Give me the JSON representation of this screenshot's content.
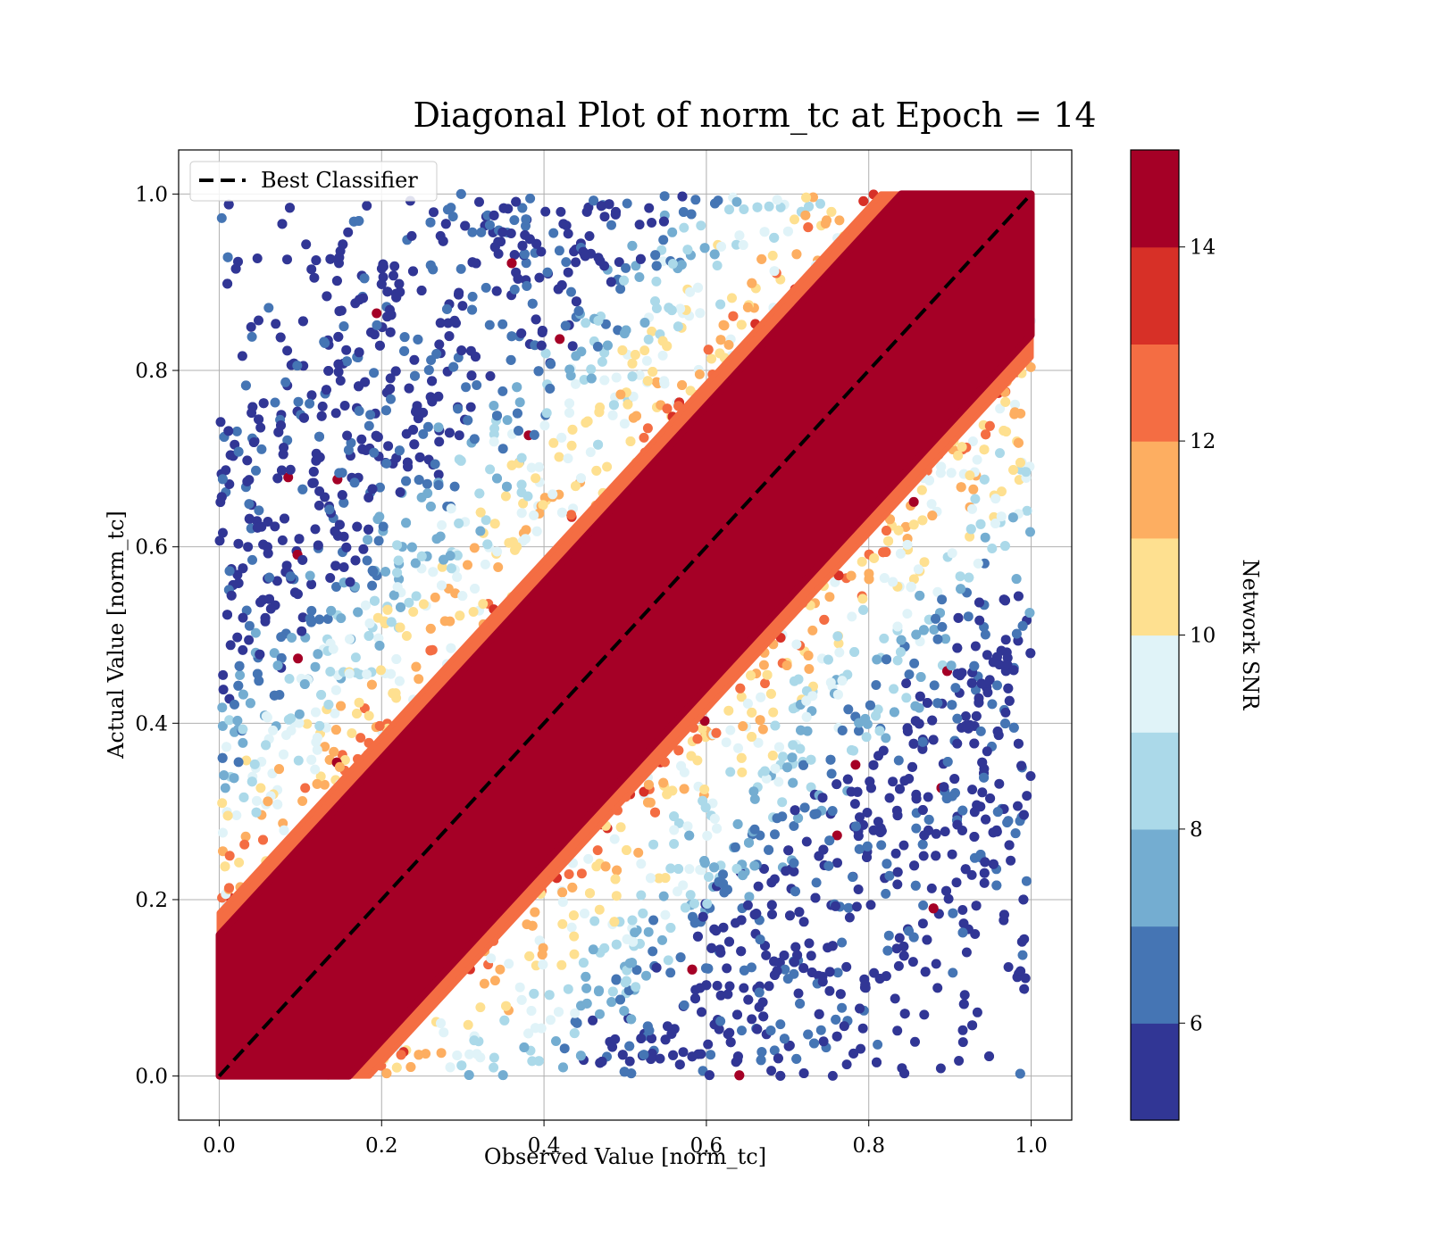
{
  "chart_data": {
    "type": "scatter",
    "title": "Diagonal Plot of norm_tc at Epoch = 14",
    "xlabel": "Observed Value [norm_tc]",
    "ylabel": "Actual Value [norm_tc]",
    "xlim": [
      -0.05,
      1.05
    ],
    "ylim": [
      -0.05,
      1.05
    ],
    "x_ticks": [
      "0.0",
      "0.2",
      "0.4",
      "0.6",
      "0.8",
      "1.0"
    ],
    "y_ticks": [
      "0.0",
      "0.2",
      "0.4",
      "0.6",
      "0.8",
      "1.0"
    ],
    "grid": true,
    "reference_line": {
      "label": "Best Classifier",
      "from": [
        0,
        0
      ],
      "to": [
        1,
        1
      ],
      "style": "dashed",
      "color": "#000000"
    },
    "legend": {
      "position": "top-left",
      "entries": [
        "Best Classifier"
      ]
    },
    "colorbar": {
      "label": "Network SNR",
      "range": [
        5,
        15
      ],
      "ticks": [
        "6",
        "8",
        "10",
        "12",
        "14"
      ],
      "colors": [
        "#313695",
        "#4575b4",
        "#74add1",
        "#abd9e9",
        "#e0f3f8",
        "#fee090",
        "#fdae61",
        "#f46d43",
        "#d73027",
        "#a50026"
      ]
    },
    "point_cloud": {
      "description_values": "Points concentrated along y = x for high SNR (>=14); low-SNR points spread widely within 0..1 on both axes",
      "high_snr_band_halfwidth": 0.16,
      "x_range": [
        0,
        1
      ],
      "y_range": [
        0,
        1
      ]
    }
  }
}
